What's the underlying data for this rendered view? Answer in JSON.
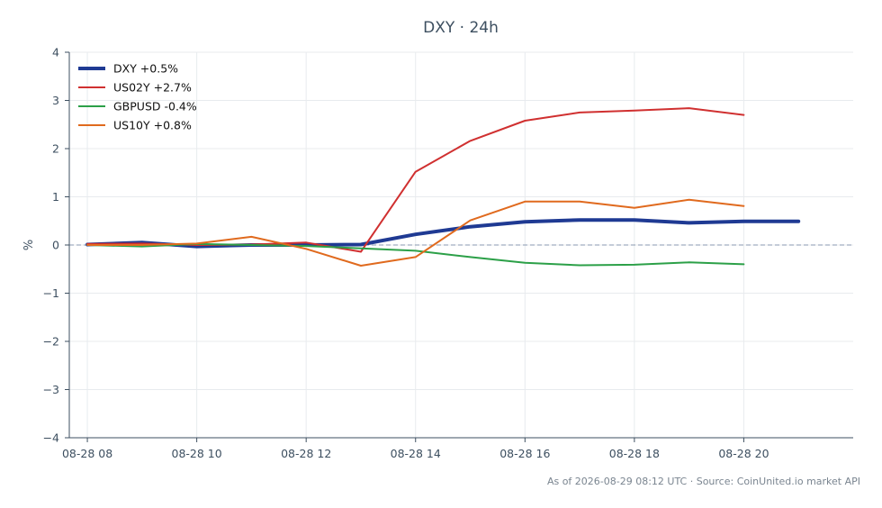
{
  "chart_data": {
    "type": "line",
    "title": "DXY · 24h",
    "ylabel": "%",
    "xlabel": "",
    "footer": "As of 2026-08-29 08:12 UTC · Source: CoinUnited.io market API",
    "ylim": [
      -4,
      4
    ],
    "yticks": [
      -4,
      -3,
      -2,
      -1,
      0,
      1,
      2,
      3,
      4
    ],
    "ytick_labels": [
      "−4",
      "−3",
      "−2",
      "−1",
      "0",
      "1",
      "2",
      "3",
      "4"
    ],
    "xlim": [
      7.67,
      22.0
    ],
    "xticks": [
      8,
      10,
      12,
      14,
      16,
      18,
      20
    ],
    "xtick_labels": [
      "08-28 08",
      "08-28 10",
      "08-28 12",
      "08-28 14",
      "08-28 16",
      "08-28 18",
      "08-28 20"
    ],
    "grid": true,
    "zero_line": true,
    "legend_position": "top-left",
    "series": [
      {
        "name": "DXY +0.5%",
        "color": "#1f3a93",
        "width": 4,
        "x": [
          8,
          9,
          10,
          11,
          12,
          13,
          14,
          15,
          16,
          17,
          18,
          19,
          20,
          21
        ],
        "values": [
          0.01,
          0.05,
          -0.03,
          0.0,
          0.0,
          0.01,
          0.22,
          0.38,
          0.48,
          0.52,
          0.52,
          0.46,
          0.49,
          0.49
        ]
      },
      {
        "name": "US02Y +2.7%",
        "color": "#d03030",
        "width": 2,
        "x": [
          8,
          9,
          10,
          11,
          12,
          13,
          14,
          15,
          16,
          17,
          18,
          19,
          20
        ],
        "values": [
          0.02,
          0.03,
          0.0,
          0.01,
          0.05,
          -0.14,
          1.52,
          2.16,
          2.58,
          2.75,
          2.79,
          2.84,
          2.7
        ]
      },
      {
        "name": "GBPUSD -0.4%",
        "color": "#2ca048",
        "width": 2,
        "x": [
          8,
          9,
          10,
          11,
          12,
          13,
          14,
          15,
          16,
          17,
          18,
          19,
          20
        ],
        "values": [
          0.0,
          -0.03,
          0.02,
          0.0,
          -0.02,
          -0.07,
          -0.12,
          -0.25,
          -0.37,
          -0.42,
          -0.41,
          -0.36,
          -0.4
        ]
      },
      {
        "name": "US10Y +0.8%",
        "color": "#e06a1e",
        "width": 2,
        "x": [
          8,
          9,
          10,
          11,
          12,
          13,
          14,
          15,
          16,
          17,
          18,
          19,
          20
        ],
        "values": [
          0.0,
          0.0,
          0.03,
          0.17,
          -0.08,
          -0.43,
          -0.25,
          0.51,
          0.9,
          0.9,
          0.77,
          0.94,
          0.81
        ]
      }
    ]
  }
}
